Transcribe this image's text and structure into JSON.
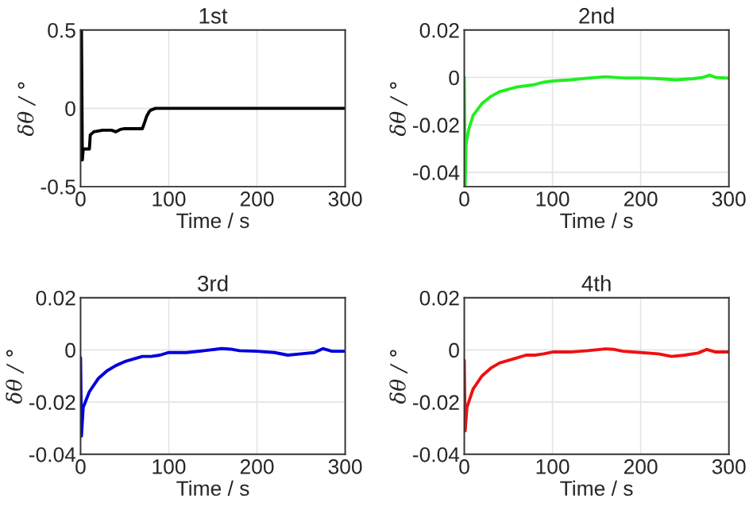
{
  "chart_data": [
    {
      "type": "line",
      "title": "1st",
      "xlabel": "Time / s",
      "ylabel": "δθ / °",
      "xlim": [
        0,
        300
      ],
      "xticks": [
        0,
        100,
        200,
        300
      ],
      "ylim": [
        -0.5,
        0.5
      ],
      "yticks": [
        -0.5,
        0,
        0.5
      ],
      "grid": true,
      "line_style": "solid",
      "marker": "none",
      "series": [
        {
          "color": "#000000",
          "x": [
            0,
            1,
            2,
            3,
            5,
            8,
            10,
            11,
            13,
            15,
            20,
            25,
            30,
            35,
            40,
            45,
            50,
            60,
            70,
            72,
            75,
            78,
            80,
            85,
            100,
            150,
            200,
            250,
            300
          ],
          "values": [
            0.5,
            0.5,
            -0.33,
            -0.26,
            -0.26,
            -0.26,
            -0.26,
            -0.17,
            -0.16,
            -0.15,
            -0.145,
            -0.14,
            -0.14,
            -0.14,
            -0.15,
            -0.135,
            -0.13,
            -0.13,
            -0.13,
            -0.1,
            -0.05,
            -0.02,
            -0.01,
            0.0,
            0.0,
            0.0,
            0.0,
            0.0,
            0.0
          ]
        }
      ]
    },
    {
      "type": "line",
      "title": "2nd",
      "xlabel": "Time / s",
      "ylabel": "δθ / °",
      "xlim": [
        0,
        300
      ],
      "xticks": [
        0,
        100,
        200,
        300
      ],
      "ylim": [
        -0.046,
        0.02
      ],
      "yticks": [
        -0.04,
        -0.02,
        0,
        0.02
      ],
      "grid": true,
      "line_style": "solid",
      "marker": "none",
      "series": [
        {
          "color": "#22ee22",
          "x": [
            0,
            1,
            2,
            5,
            10,
            20,
            30,
            40,
            50,
            60,
            70,
            80,
            90,
            100,
            120,
            140,
            160,
            180,
            200,
            220,
            240,
            260,
            270,
            278,
            285,
            300
          ],
          "values": [
            0,
            -0.046,
            -0.028,
            -0.022,
            -0.016,
            -0.011,
            -0.008,
            -0.006,
            -0.005,
            -0.004,
            -0.0035,
            -0.003,
            -0.002,
            -0.0015,
            -0.001,
            -0.0003,
            0.0003,
            -0.0002,
            -0.0002,
            -0.0005,
            -0.001,
            -0.0005,
            0,
            0.001,
            0,
            -0.0003
          ]
        }
      ]
    },
    {
      "type": "line",
      "title": "3rd",
      "xlabel": "Time / s",
      "ylabel": "δθ / °",
      "xlim": [
        0,
        300
      ],
      "xticks": [
        0,
        100,
        200,
        300
      ],
      "ylim": [
        -0.04,
        0.02
      ],
      "yticks": [
        -0.04,
        -0.02,
        0,
        0.02
      ],
      "grid": true,
      "line_style": "solid",
      "marker": "none",
      "series": [
        {
          "color": "#0000dd",
          "x": [
            0,
            1,
            3,
            10,
            20,
            30,
            40,
            50,
            60,
            70,
            80,
            90,
            100,
            120,
            140,
            160,
            170,
            180,
            200,
            220,
            235,
            250,
            265,
            275,
            285,
            300
          ],
          "values": [
            -0.003,
            -0.033,
            -0.022,
            -0.016,
            -0.011,
            -0.008,
            -0.006,
            -0.0045,
            -0.0035,
            -0.0025,
            -0.0025,
            -0.002,
            -0.001,
            -0.001,
            -0.0003,
            0.0005,
            0.0003,
            -0.0003,
            -0.0005,
            -0.001,
            -0.002,
            -0.0015,
            -0.001,
            0.0005,
            -0.0005,
            -0.0005
          ]
        }
      ]
    },
    {
      "type": "line",
      "title": "4th",
      "xlabel": "Time / s",
      "ylabel": "δθ / °",
      "xlim": [
        0,
        300
      ],
      "xticks": [
        0,
        100,
        200,
        300
      ],
      "ylim": [
        -0.04,
        0.02
      ],
      "yticks": [
        -0.04,
        -0.02,
        0,
        0.02
      ],
      "grid": true,
      "line_style": "solid",
      "marker": "none",
      "series": [
        {
          "color": "#ee1111",
          "x": [
            0,
            1,
            3,
            10,
            20,
            30,
            40,
            50,
            60,
            70,
            80,
            90,
            100,
            120,
            140,
            160,
            170,
            180,
            200,
            220,
            235,
            250,
            265,
            275,
            285,
            300
          ],
          "values": [
            -0.004,
            -0.031,
            -0.022,
            -0.015,
            -0.01,
            -0.007,
            -0.005,
            -0.004,
            -0.003,
            -0.002,
            -0.002,
            -0.0015,
            -0.0008,
            -0.0008,
            -0.0003,
            0.0004,
            0.0002,
            -0.0005,
            -0.001,
            -0.0015,
            -0.0025,
            -0.002,
            -0.0012,
            0.0002,
            -0.0008,
            -0.0008
          ]
        }
      ]
    }
  ]
}
